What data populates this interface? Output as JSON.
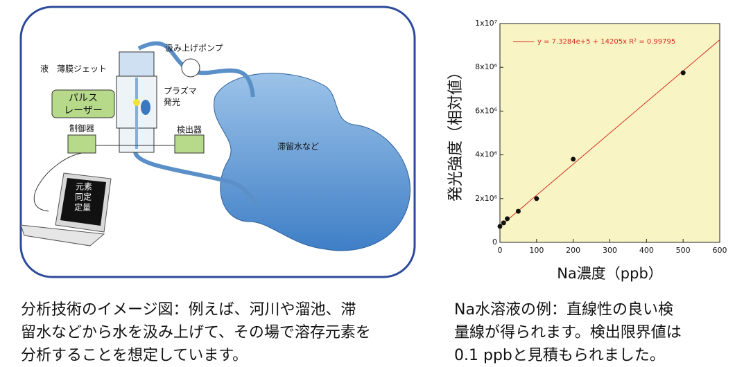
{
  "diagram": {
    "liquid": "液",
    "jet": "薄膜ジェット",
    "pump": "汲み上げポンプ",
    "plasma": [
      "プラズマ",
      "発光"
    ],
    "laser": [
      "パルス",
      "レーザー"
    ],
    "controller": "制御器",
    "detector": "検出器",
    "water": "滞留水など",
    "screen": [
      "元素",
      "同定",
      "定量"
    ]
  },
  "chart_data": {
    "type": "scatter",
    "xlabel": "Na濃度（ppb）",
    "ylabel": "発光強度（相対値）",
    "x": [
      0,
      10,
      20,
      50,
      100,
      200,
      500
    ],
    "values": [
      730000,
      890000,
      1080000,
      1420000,
      2000000,
      3800000,
      7750000
    ],
    "color": "#111111",
    "fit": {
      "x": [
        0,
        600
      ],
      "values": [
        732840,
        9255840
      ],
      "color": "#d62a1e"
    },
    "annotation": "y = 7.3284e+5 + 14205x   R² = 0.99795",
    "xlim": [
      0,
      600
    ],
    "xticks": [
      0,
      100,
      200,
      300,
      400,
      500,
      600
    ],
    "ylim": [
      0,
      10000000
    ],
    "yticks": [
      0,
      {
        "value": 2000000,
        "label": "2x10⁶"
      },
      {
        "value": 4000000,
        "label": "4x10⁶"
      },
      {
        "value": 6000000,
        "label": "6x10⁶"
      },
      {
        "value": 8000000,
        "label": "8x10⁶"
      },
      {
        "value": 10000000,
        "label": "1x10⁷"
      }
    ],
    "background": "#f8f4c4"
  },
  "captions": {
    "left": [
      "分析技術のイメージ図：例えば、河川や溜池、滞",
      "留水などから水を汲み上げて、その場で溶存元素を",
      "分析することを想定しています。"
    ],
    "right": [
      "Na水溶液の例：直線性の良い検",
      "量線が得られます。検出限界値は",
      "0.1 ppbと見積もられました。"
    ]
  }
}
